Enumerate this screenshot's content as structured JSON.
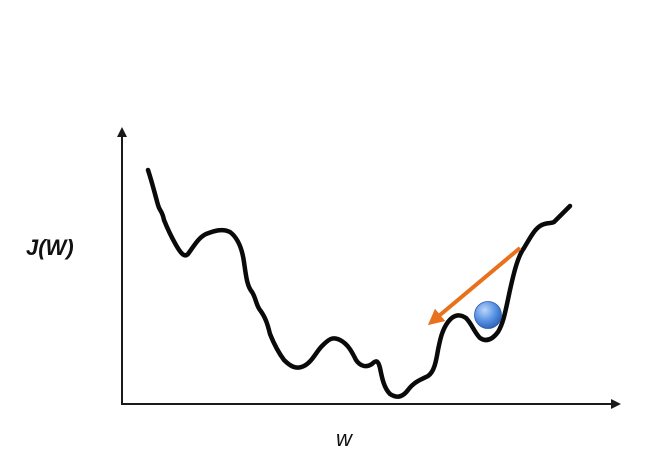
{
  "labels": {
    "y_axis": "J(W)",
    "x_axis": "w"
  },
  "colors": {
    "axis": "#1a1a1a",
    "curve": "#0a0a0a",
    "arrow": "#e8711c",
    "ball": "#3f7fd9",
    "ball_highlight": "#bcd6f7"
  },
  "elements": {
    "ball_icon": "sphere",
    "arrow_icon": "gradient-step-arrow"
  }
}
